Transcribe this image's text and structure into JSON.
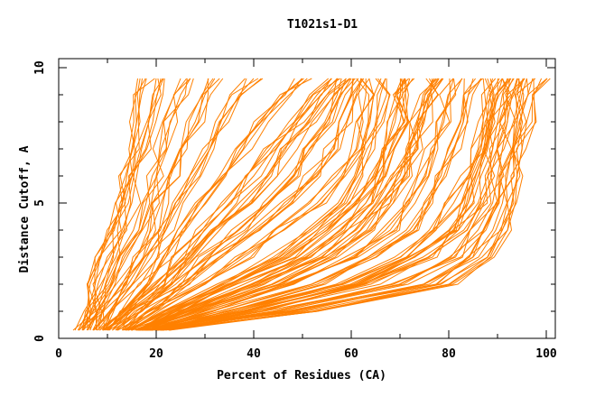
{
  "chart_data": {
    "type": "line",
    "title": "T1021s1-D1",
    "xlabel": "Percent of Residues (CA)",
    "ylabel": "Distance Cutoff, A",
    "xlim": [
      0,
      102
    ],
    "ylim": [
      0,
      10.3
    ],
    "xticks": [
      "0",
      "20",
      "40",
      "60",
      "80",
      "100"
    ],
    "yticks": [
      "0",
      "5",
      "10"
    ],
    "grid": false,
    "legend": "none",
    "color": "#ff8000",
    "y": [
      0.3,
      1,
      2,
      3,
      4,
      5,
      6,
      7,
      8,
      9,
      9.6
    ],
    "series": [
      {
        "x": [
          4,
          6,
          7.5,
          8.5,
          11,
          13,
          14,
          15,
          16,
          17,
          18
        ]
      },
      {
        "x": [
          5,
          7,
          9,
          11,
          13,
          15,
          16,
          17,
          18.5,
          19.5,
          20
        ]
      },
      {
        "x": [
          6,
          8,
          11,
          14,
          17,
          19,
          20,
          21,
          23,
          25,
          27
        ]
      },
      {
        "x": [
          7,
          9,
          13,
          16,
          19,
          21,
          23,
          25,
          28,
          30,
          32
        ]
      },
      {
        "x": [
          8,
          11,
          15,
          19,
          22,
          25,
          28,
          31,
          34,
          37,
          40
        ]
      },
      {
        "x": [
          9,
          13,
          18,
          22,
          26,
          30,
          34,
          38,
          42,
          46,
          50
        ]
      },
      {
        "x": [
          10,
          14,
          20,
          25,
          30,
          35,
          40,
          44,
          49,
          53,
          56
        ]
      },
      {
        "x": [
          12,
          16,
          24,
          30,
          37,
          43,
          48,
          52,
          55,
          58,
          60
        ]
      },
      {
        "x": [
          14,
          20,
          30,
          38,
          46,
          53,
          58,
          61,
          62,
          63,
          63
        ]
      },
      {
        "x": [
          15,
          22,
          34,
          44,
          52,
          59,
          62,
          64,
          65,
          66,
          67
        ]
      },
      {
        "x": [
          16,
          25,
          38,
          50,
          58,
          63,
          66,
          68,
          70,
          71,
          72
        ]
      },
      {
        "x": [
          17,
          28,
          44,
          56,
          64,
          68,
          71,
          73,
          75,
          76,
          77
        ]
      },
      {
        "x": [
          18,
          30,
          48,
          60,
          68,
          72,
          75,
          77,
          79,
          80,
          81
        ]
      },
      {
        "x": [
          18,
          33,
          53,
          65,
          72,
          76,
          79,
          81,
          83,
          84,
          85
        ]
      },
      {
        "x": [
          19,
          36,
          58,
          70,
          77,
          81,
          84,
          86,
          87,
          88,
          89
        ]
      },
      {
        "x": [
          19,
          40,
          64,
          76,
          82,
          86,
          88,
          89,
          90,
          91,
          92
        ]
      },
      {
        "x": [
          20,
          44,
          70,
          81,
          86,
          89,
          90,
          91,
          92,
          93,
          94
        ]
      },
      {
        "x": [
          20,
          48,
          76,
          85,
          89,
          91,
          92,
          93,
          94,
          95,
          96
        ]
      },
      {
        "x": [
          21,
          52,
          80,
          88,
          91,
          93,
          94,
          95,
          96,
          97.5,
          99
        ]
      },
      {
        "x": [
          13,
          18,
          26,
          33,
          40,
          47,
          52,
          56,
          59,
          61,
          62
        ]
      },
      {
        "x": [
          11,
          15,
          22,
          28,
          33,
          38,
          43,
          47,
          51,
          55,
          59
        ]
      },
      {
        "x": [
          17,
          26,
          41,
          53,
          61,
          66,
          70,
          72,
          74,
          76,
          78
        ]
      },
      {
        "x": [
          19,
          38,
          61,
          73,
          80,
          84,
          86,
          88,
          89,
          90,
          91
        ]
      },
      {
        "x": [
          16,
          24,
          36,
          47,
          55,
          61,
          65,
          67,
          69,
          70,
          71
        ]
      }
    ]
  }
}
